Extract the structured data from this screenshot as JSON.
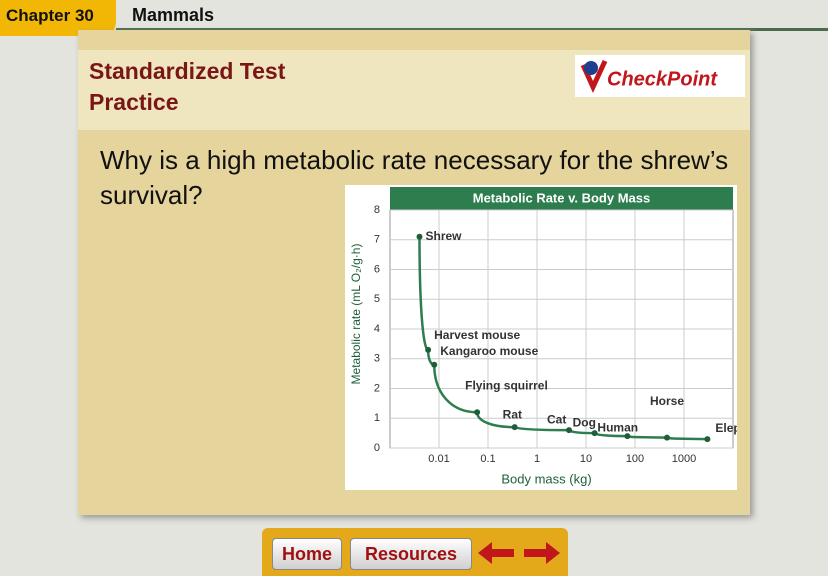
{
  "header": {
    "chapter": "Chapter 30",
    "section": "Mammals"
  },
  "panel": {
    "title": "Standardized Test Practice",
    "logo": "CheckPoint"
  },
  "question": "Why is a high metabolic rate necessary for the shrew’s survival?",
  "chart_data": {
    "type": "line",
    "title": "Metabolic Rate v. Body Mass",
    "x_label": "Body mass (kg)",
    "y_label": "Metabolic rate (mL O₂/g·h)",
    "xscale": "log",
    "xlim": [
      0.001,
      10000
    ],
    "xticks": [
      0.01,
      0.1,
      1,
      10,
      100,
      1000
    ],
    "ylim": [
      0,
      8
    ],
    "yticks": [
      0,
      1,
      2,
      3,
      4,
      5,
      6,
      7,
      8
    ],
    "series": [
      {
        "color": "#2e7d4f",
        "labels": [
          "Shrew",
          "Harvest mouse",
          "Kangaroo mouse",
          "Flying squirrel",
          "Rat",
          "Cat",
          "Dog",
          "Human",
          "Horse",
          "Elephant"
        ],
        "x": [
          0.004,
          0.006,
          0.008,
          0.06,
          0.35,
          4.5,
          15,
          70,
          450,
          3000
        ],
        "values": [
          7.1,
          3.3,
          2.8,
          1.2,
          0.7,
          0.6,
          0.5,
          0.4,
          0.35,
          0.3
        ]
      }
    ]
  },
  "nav": {
    "home": "Home",
    "resources": "Resources"
  }
}
